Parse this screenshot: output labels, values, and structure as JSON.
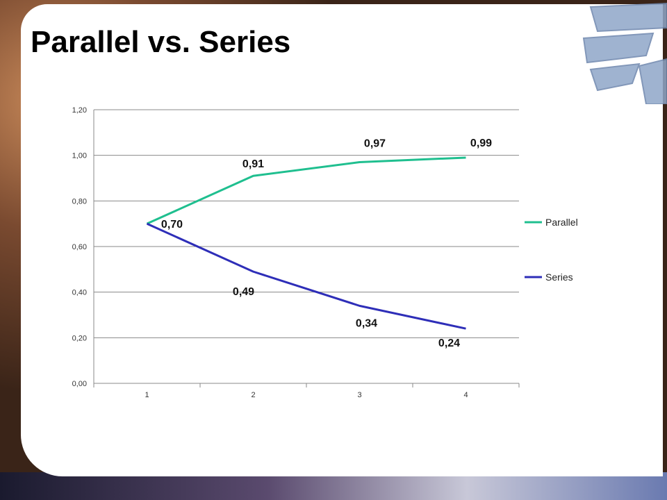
{
  "slide": {
    "title": "Parallel vs. Series"
  },
  "chart_data": {
    "type": "line",
    "categories": [
      "1",
      "2",
      "3",
      "4"
    ],
    "series": [
      {
        "name": "Parallel",
        "values": [
          0.7,
          0.91,
          0.97,
          0.99
        ],
        "color": "#1fbf8f",
        "labels": [
          "0,70",
          "0,91",
          "0,97",
          "0,99"
        ]
      },
      {
        "name": "Series",
        "values": [
          0.7,
          0.49,
          0.34,
          0.24
        ],
        "color": "#2e2eb8",
        "labels": [
          "",
          "0,49",
          "0,34",
          "0,24"
        ]
      }
    ],
    "ylim": [
      0,
      1.2
    ],
    "yticks": [
      "0,00",
      "0,20",
      "0,40",
      "0,60",
      "0,80",
      "1,00",
      "1,20"
    ],
    "grid": true,
    "legend": "right"
  }
}
